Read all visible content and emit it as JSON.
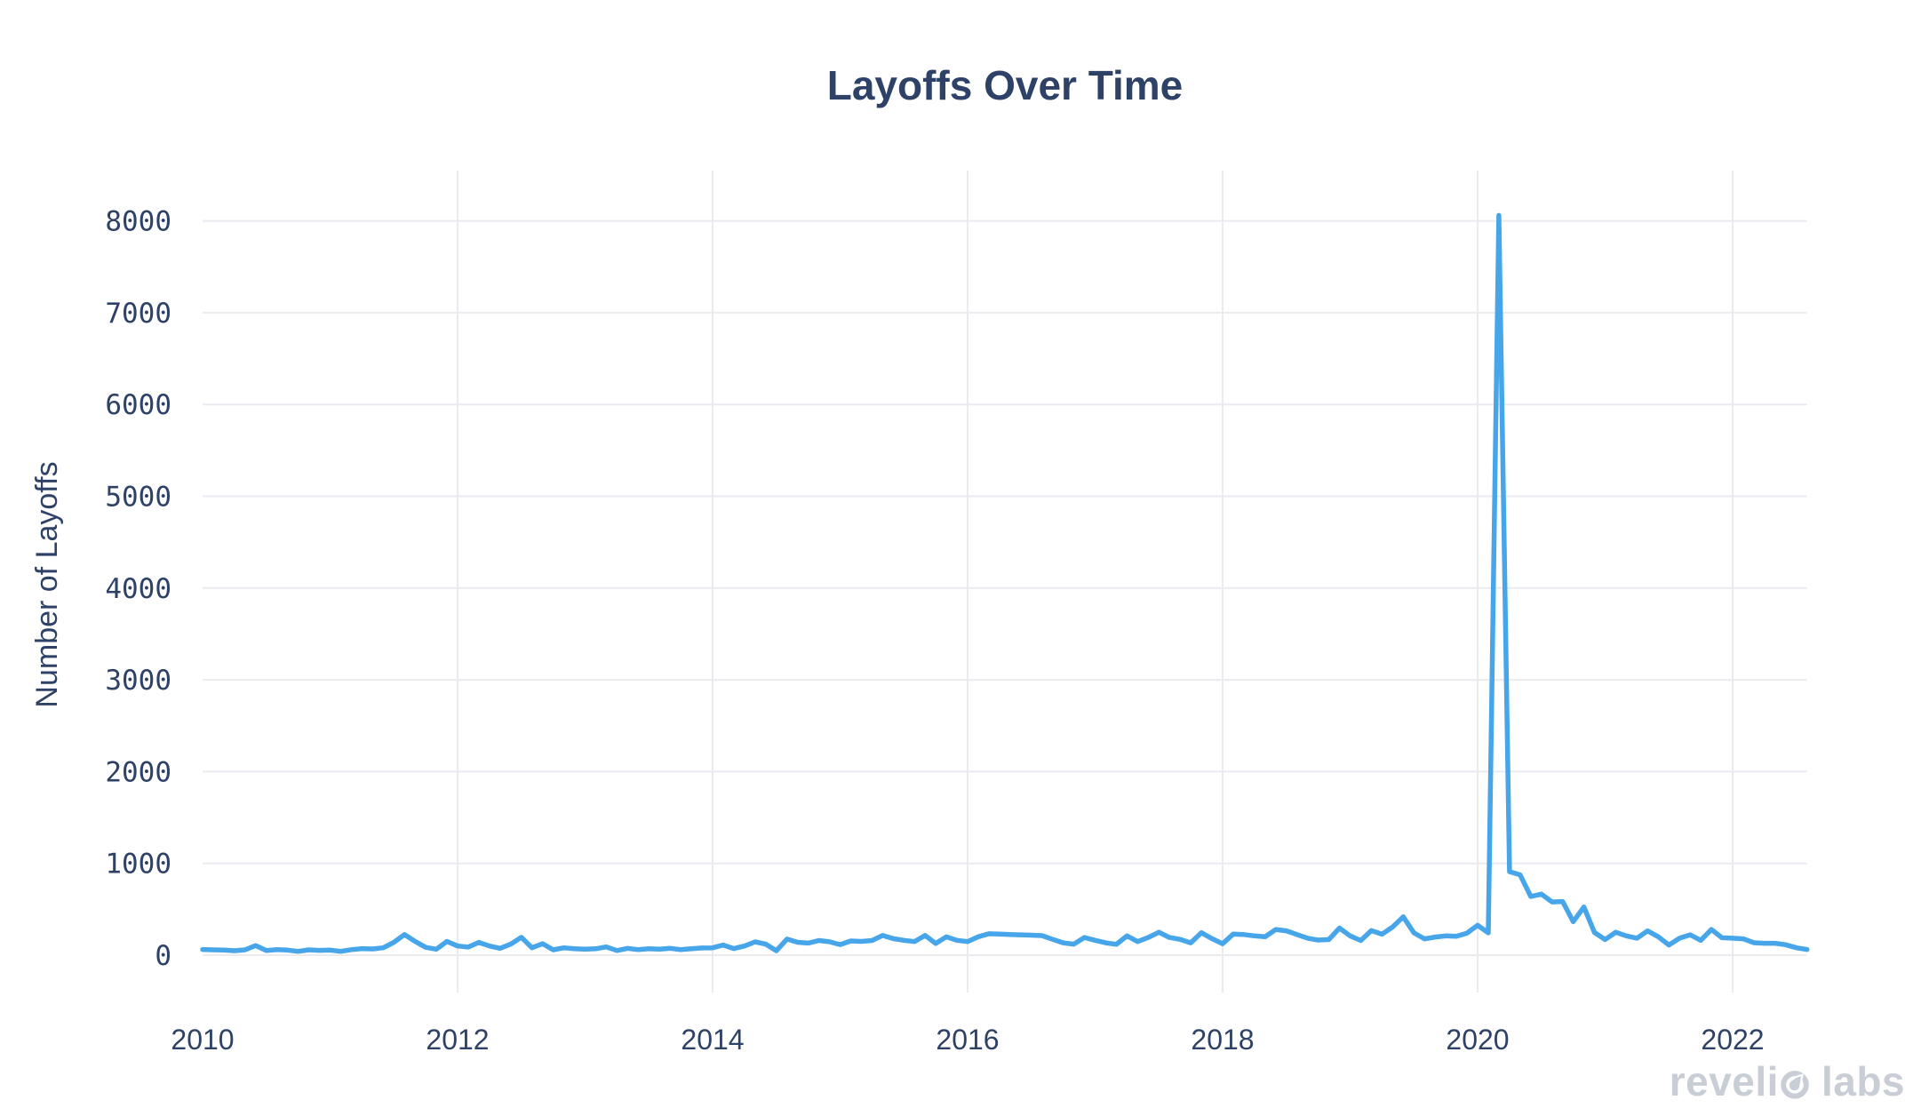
{
  "watermark": {
    "text": "revelio labs",
    "part_before_o": "reveli",
    "part_after_o": "labs",
    "color": "#c9cdd5"
  },
  "chart_data": {
    "type": "line",
    "title": "Layoffs Over Time",
    "xlabel": "",
    "ylabel": "Number of Layoffs",
    "x_frequency": "monthly",
    "x_range_start": "2010-01",
    "x_range_end": "2022-08",
    "x_tick_years": [
      2010,
      2012,
      2014,
      2016,
      2018,
      2020,
      2022
    ],
    "y_ticks": [
      0,
      1000,
      2000,
      3000,
      4000,
      5000,
      6000,
      7000,
      8000
    ],
    "ylim": [
      0,
      8550
    ],
    "grid": true,
    "legend_position": "none",
    "line_color": "#47a5e9",
    "grid_color": "#e9ebf0",
    "text_color": "#2e4166",
    "peak_annotation": {
      "month": "2020-03",
      "value": 8060
    },
    "series": [
      {
        "name": "Number of Layoffs",
        "values": [
          62,
          58,
          55,
          48,
          58,
          105,
          50,
          60,
          55,
          42,
          58,
          52,
          55,
          42,
          60,
          72,
          68,
          80,
          140,
          225,
          150,
          85,
          65,
          150,
          100,
          88,
          139,
          100,
          75,
          120,
          195,
          80,
          125,
          58,
          80,
          70,
          65,
          70,
          90,
          50,
          75,
          60,
          70,
          65,
          75,
          60,
          70,
          78,
          80,
          110,
          72,
          100,
          145,
          120,
          48,
          175,
          140,
          132,
          160,
          146,
          115,
          155,
          150,
          160,
          215,
          180,
          162,
          148,
          215,
          128,
          200,
          162,
          148,
          200,
          233,
          230,
          225,
          222,
          218,
          213,
          172,
          135,
          120,
          193,
          162,
          135,
          118,
          210,
          148,
          193,
          250,
          193,
          172,
          135,
          245,
          180,
          125,
          230,
          225,
          210,
          200,
          280,
          265,
          225,
          185,
          165,
          170,
          295,
          210,
          160,
          268,
          228,
          307,
          418,
          243,
          178,
          197,
          210,
          205,
          240,
          325,
          243,
          8060,
          910,
          875,
          640,
          665,
          580,
          585,
          365,
          525,
          248,
          170,
          250,
          210,
          185,
          265,
          200,
          110,
          185,
          222,
          162,
          280,
          190,
          185,
          178,
          136,
          130,
          130,
          113,
          80,
          62
        ]
      }
    ]
  }
}
